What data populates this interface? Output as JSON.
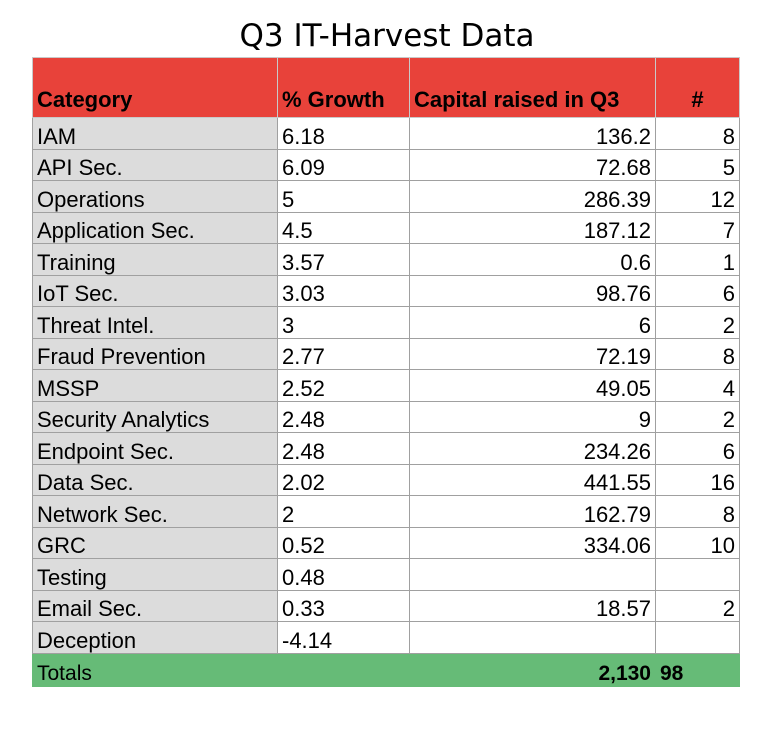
{
  "chart_data": {
    "type": "table",
    "title": "Q3 IT-Harvest Data",
    "columns": [
      "Category",
      "% Growth",
      "Capital raised in Q3",
      "#"
    ],
    "rows": [
      {
        "category": "IAM",
        "growth": "6.18",
        "capital": "136.2",
        "count": "8"
      },
      {
        "category": "API Sec.",
        "growth": "6.09",
        "capital": "72.68",
        "count": "5"
      },
      {
        "category": "Operations",
        "growth": "5",
        "capital": "286.39",
        "count": "12"
      },
      {
        "category": "Application Sec.",
        "growth": "4.5",
        "capital": "187.12",
        "count": "7"
      },
      {
        "category": "Training",
        "growth": "3.57",
        "capital": "0.6",
        "count": "1"
      },
      {
        "category": "IoT Sec.",
        "growth": "3.03",
        "capital": "98.76",
        "count": "6"
      },
      {
        "category": "Threat Intel.",
        "growth": "3",
        "capital": "6",
        "count": "2"
      },
      {
        "category": "Fraud Prevention",
        "growth": "2.77",
        "capital": "72.19",
        "count": "8"
      },
      {
        "category": "MSSP",
        "growth": "2.52",
        "capital": "49.05",
        "count": "4"
      },
      {
        "category": "Security Analytics",
        "growth": "2.48",
        "capital": "9",
        "count": "2"
      },
      {
        "category": "Endpoint Sec.",
        "growth": "2.48",
        "capital": "234.26",
        "count": "6"
      },
      {
        "category": "Data Sec.",
        "growth": "2.02",
        "capital": "441.55",
        "count": "16"
      },
      {
        "category": "Network Sec.",
        "growth": "2",
        "capital": "162.79",
        "count": "8"
      },
      {
        "category": "GRC",
        "growth": "0.52",
        "capital": "334.06",
        "count": "10"
      },
      {
        "category": "Testing",
        "growth": "0.48",
        "capital": "",
        "count": ""
      },
      {
        "category": "Email Sec.",
        "growth": "0.33",
        "capital": "18.57",
        "count": "2"
      },
      {
        "category": "Deception",
        "growth": "-4.14",
        "capital": "",
        "count": ""
      }
    ],
    "totals": {
      "label": "Totals",
      "capital": "2,130",
      "count": "98"
    }
  },
  "colors": {
    "header_bg": "#e8423a",
    "category_bg": "#dcdcdc",
    "totals_bg": "#66bb77"
  }
}
